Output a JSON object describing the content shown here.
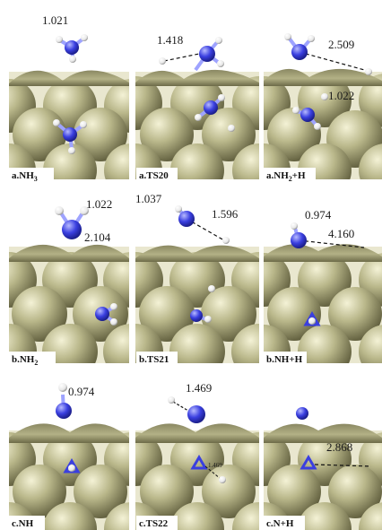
{
  "colors": {
    "surface_atom": "#a9a77c",
    "surface_atom_light": "#e6e4c4",
    "surface_atom_dark": "#5c5a3a",
    "nitrogen": "#3a3fe0",
    "nitrogen_light": "#9ea3ff",
    "hydrogen": "#f2f2f2",
    "background": "#ffffff"
  },
  "panels": [
    {
      "id": "a1",
      "label": "a.NH",
      "label_sub": "3",
      "label_tail": "",
      "distances": [
        {
          "text": "1.021"
        }
      ]
    },
    {
      "id": "a2",
      "label": "a.TS20",
      "label_sub": "",
      "label_tail": "",
      "distances": [
        {
          "text": "1.418"
        }
      ]
    },
    {
      "id": "a3",
      "label": "a.NH",
      "label_sub": "2",
      "label_tail": "+H",
      "distances": [
        {
          "text": "2.509"
        },
        {
          "text": "1.022"
        }
      ]
    },
    {
      "id": "b1",
      "label": "b.NH",
      "label_sub": "2",
      "label_tail": "",
      "distances": [
        {
          "text": "1.022"
        },
        {
          "text": "2.104"
        }
      ]
    },
    {
      "id": "b2",
      "label": "b.TS21",
      "label_sub": "",
      "label_tail": "",
      "distances": [
        {
          "text": "1.037"
        },
        {
          "text": "1.596"
        }
      ]
    },
    {
      "id": "b3",
      "label": "b.NH+H",
      "label_sub": "",
      "label_tail": "",
      "distances": [
        {
          "text": "0.974"
        },
        {
          "text": "4.160"
        }
      ]
    },
    {
      "id": "c1",
      "label": "c.NH",
      "label_sub": "",
      "label_tail": "",
      "distances": [
        {
          "text": "0.974"
        }
      ]
    },
    {
      "id": "c2",
      "label": "c.TS22",
      "label_sub": "",
      "label_tail": "",
      "distances": [
        {
          "text": "1.469"
        },
        {
          "text": "1.469"
        }
      ]
    },
    {
      "id": "c3",
      "label": "c.N+H",
      "label_sub": "",
      "label_tail": "",
      "distances": [
        {
          "text": "2.868"
        }
      ]
    }
  ]
}
